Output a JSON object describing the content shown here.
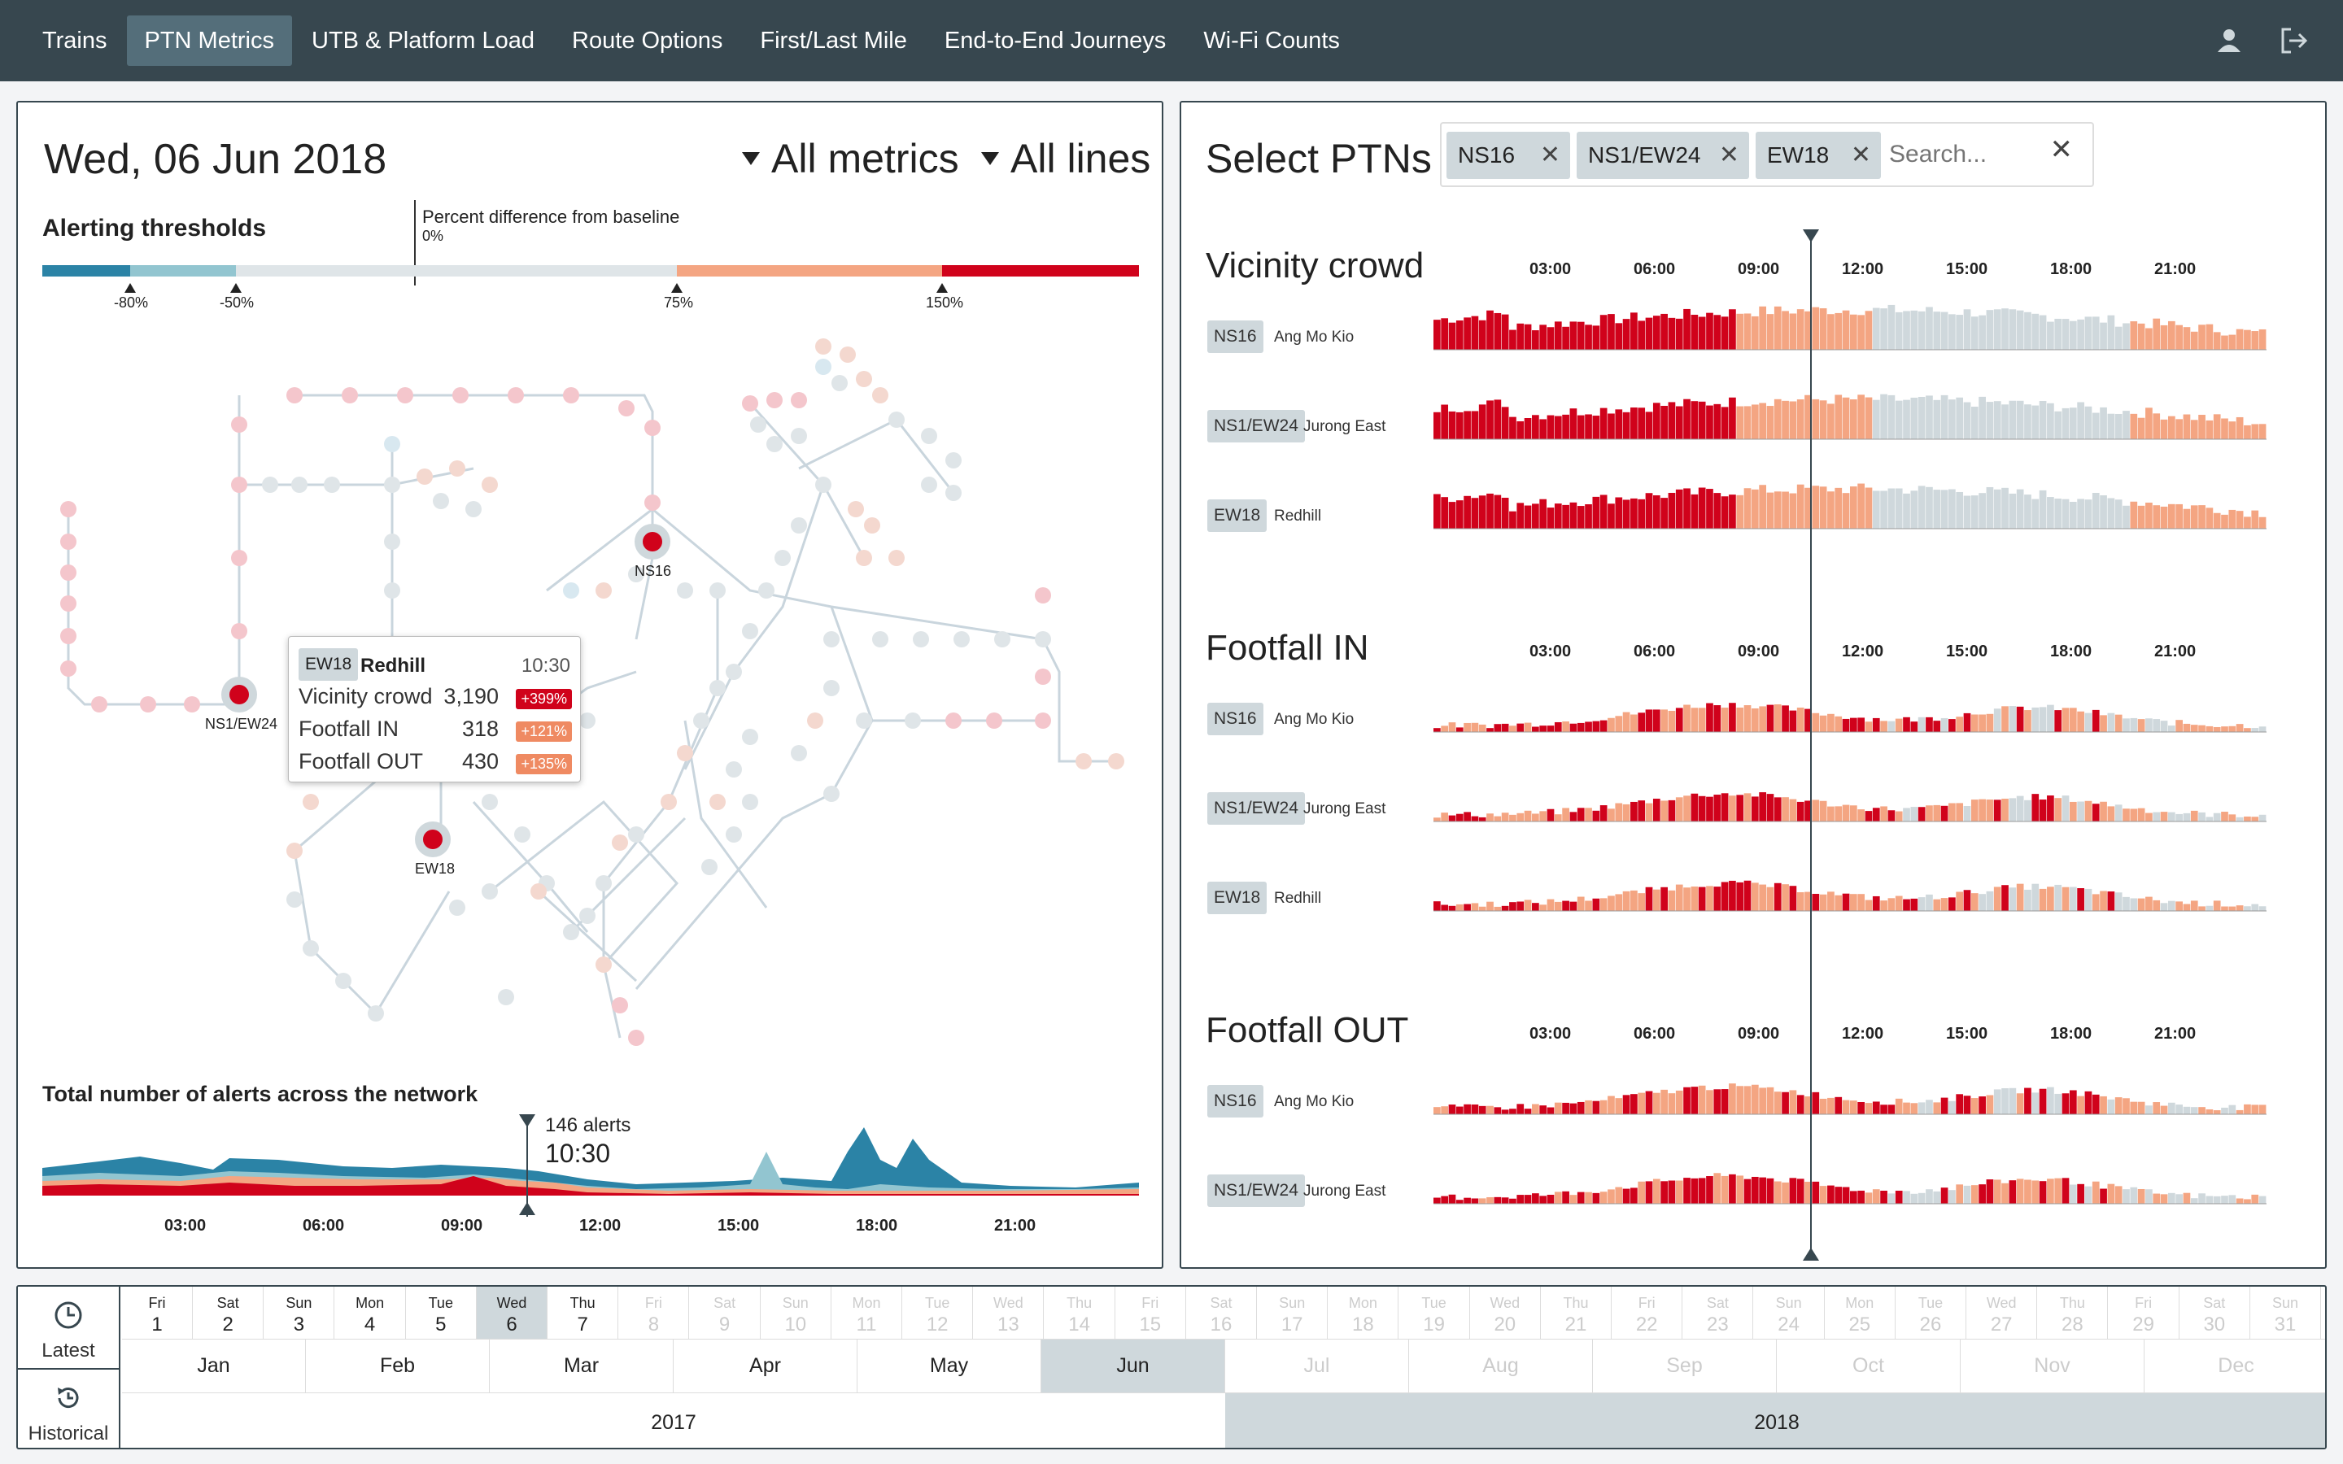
{
  "nav": {
    "tabs": [
      "Trains",
      "PTN Metrics",
      "UTB & Platform Load",
      "Route Options",
      "First/Last Mile",
      "End-to-End Journeys",
      "Wi-Fi Counts"
    ],
    "active": "PTN Metrics",
    "icons": [
      "user-icon",
      "logout-icon"
    ]
  },
  "left": {
    "date": "Wed, 06 Jun 2018",
    "metrics_dropdown": "All metrics",
    "lines_dropdown": "All lines",
    "thresholds_title": "Alerting thresholds",
    "baseline_label": "Percent difference from baseline",
    "baseline_zero": "0%",
    "threshold_ticks": [
      "-80%",
      "-50%",
      "75%",
      "150%"
    ],
    "stations": {
      "ns16": "NS16",
      "ns1ew24": "NS1/EW24",
      "ew18": "EW18"
    },
    "tooltip": {
      "badge": "EW18",
      "name": "Redhill",
      "time": "10:30",
      "rows": [
        {
          "label": "Vicinity crowd",
          "value": "3,190",
          "pct": "+399%"
        },
        {
          "label": "Footfall IN",
          "value": "318",
          "pct": "+121%"
        },
        {
          "label": "Footfall OUT",
          "value": "430",
          "pct": "+135%"
        }
      ]
    },
    "alerts_title": "Total number of alerts across the network",
    "alerts_count": "146 alerts",
    "alerts_time": "10:30",
    "alerts_hours": [
      "03:00",
      "06:00",
      "09:00",
      "12:00",
      "15:00",
      "18:00",
      "21:00"
    ]
  },
  "right": {
    "title": "Select PTNs",
    "chips": [
      "NS16",
      "NS1/EW24",
      "EW18"
    ],
    "search_placeholder": "Search...",
    "hours": [
      "03:00",
      "06:00",
      "09:00",
      "12:00",
      "15:00",
      "18:00",
      "21:00"
    ],
    "sections": [
      {
        "title": "Vicinity crowd",
        "rows": [
          {
            "code": "NS16",
            "name": "Ang Mo Kio"
          },
          {
            "code": "NS1/EW24",
            "name": "Jurong East"
          },
          {
            "code": "EW18",
            "name": "Redhill"
          }
        ]
      },
      {
        "title": "Footfall IN",
        "rows": [
          {
            "code": "NS16",
            "name": "Ang Mo Kio"
          },
          {
            "code": "NS1/EW24",
            "name": "Jurong East"
          },
          {
            "code": "EW18",
            "name": "Redhill"
          }
        ]
      },
      {
        "title": "Footfall OUT",
        "rows": [
          {
            "code": "NS16",
            "name": "Ang Mo Kio"
          },
          {
            "code": "NS1/EW24",
            "name": "Jurong East"
          }
        ]
      }
    ]
  },
  "timeline": {
    "latest": "Latest",
    "historical": "Historical",
    "days": [
      {
        "wd": "Fri",
        "d": "1"
      },
      {
        "wd": "Sat",
        "d": "2"
      },
      {
        "wd": "Sun",
        "d": "3"
      },
      {
        "wd": "Mon",
        "d": "4"
      },
      {
        "wd": "Tue",
        "d": "5"
      },
      {
        "wd": "Wed",
        "d": "6"
      },
      {
        "wd": "Thu",
        "d": "7"
      },
      {
        "wd": "Fri",
        "d": "8"
      },
      {
        "wd": "Sat",
        "d": "9"
      },
      {
        "wd": "Sun",
        "d": "10"
      },
      {
        "wd": "Mon",
        "d": "11"
      },
      {
        "wd": "Tue",
        "d": "12"
      },
      {
        "wd": "Wed",
        "d": "13"
      },
      {
        "wd": "Thu",
        "d": "14"
      },
      {
        "wd": "Fri",
        "d": "15"
      },
      {
        "wd": "Sat",
        "d": "16"
      },
      {
        "wd": "Sun",
        "d": "17"
      },
      {
        "wd": "Mon",
        "d": "18"
      },
      {
        "wd": "Tue",
        "d": "19"
      },
      {
        "wd": "Wed",
        "d": "20"
      },
      {
        "wd": "Thu",
        "d": "21"
      },
      {
        "wd": "Fri",
        "d": "22"
      },
      {
        "wd": "Sat",
        "d": "23"
      },
      {
        "wd": "Sun",
        "d": "24"
      },
      {
        "wd": "Mon",
        "d": "25"
      },
      {
        "wd": "Tue",
        "d": "26"
      },
      {
        "wd": "Wed",
        "d": "27"
      },
      {
        "wd": "Thu",
        "d": "28"
      },
      {
        "wd": "Fri",
        "d": "29"
      },
      {
        "wd": "Sat",
        "d": "30"
      },
      {
        "wd": "Sun",
        "d": "31"
      }
    ],
    "selected_day": 6,
    "last_active_day": 7,
    "months": [
      "Jan",
      "Feb",
      "Mar",
      "Apr",
      "May",
      "Jun",
      "Jul",
      "Aug",
      "Sep",
      "Oct",
      "Nov",
      "Dec"
    ],
    "selected_month": "Jun",
    "years": [
      "2017",
      "2018"
    ],
    "selected_year": "2018"
  },
  "colors": {
    "nav_bg": "#37474f",
    "deep_red": "#d0021b",
    "light_red": "#f4a582",
    "grey": "#cfd8dc",
    "blue": "#2b83a6",
    "light_blue": "#92c5d0"
  }
}
